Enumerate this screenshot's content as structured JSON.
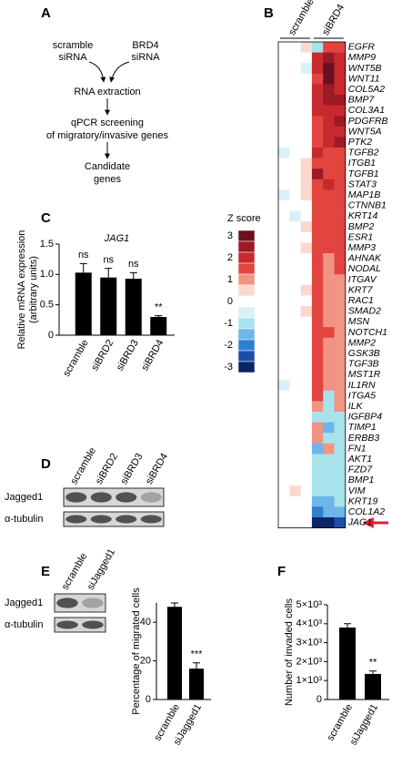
{
  "flowchart": {
    "label": "A",
    "inputs": [
      [
        "scramble",
        "siRNA"
      ],
      [
        "BRD4",
        "siRNA"
      ]
    ],
    "steps": [
      [
        "RNA extraction"
      ],
      [
        "qPCR screening",
        "of migratory/invasive genes"
      ],
      [
        "Candidate",
        "genes"
      ]
    ]
  },
  "heatmap": {
    "label": "B",
    "column_groups": [
      "scramble",
      "siBRD4"
    ],
    "legend_title": "Z score",
    "legend_ticks": [
      3,
      2,
      1,
      0,
      -1,
      -2,
      -3
    ],
    "colorscale": [
      {
        "value": 3,
        "color": "#6d0f1e"
      },
      {
        "value": 2.5,
        "color": "#9c1a26"
      },
      {
        "value": 2,
        "color": "#c62a2f"
      },
      {
        "value": 1.5,
        "color": "#e2453f"
      },
      {
        "value": 1,
        "color": "#f29483"
      },
      {
        "value": 0.5,
        "color": "#fbd8cf"
      },
      {
        "value": 0,
        "color": "#ffffff"
      },
      {
        "value": -0.5,
        "color": "#d9f1f6"
      },
      {
        "value": -1,
        "color": "#a8e2eb"
      },
      {
        "value": -1.5,
        "color": "#6cb6e8"
      },
      {
        "value": -2,
        "color": "#2f7fd0"
      },
      {
        "value": -2.5,
        "color": "#1a4fa8"
      },
      {
        "value": -3,
        "color": "#0b2468"
      }
    ],
    "genes": [
      "EGFR",
      "MMP9",
      "WNT5B",
      "WNT11",
      "COL5A2",
      "BMP7",
      "COL3A1",
      "PDGFRB",
      "WNT5A",
      "PTK2",
      "TGFB2",
      "ITGB1",
      "TGFB1",
      "STAT3",
      "MAP1B",
      "CTNNB1",
      "KRT14",
      "BMP2",
      "ESR1",
      "MMP3",
      "AHNAK",
      "NODAL",
      "ITGAV",
      "KRT7",
      "RAC1",
      "SMAD2",
      "MSN",
      "NOTCH1",
      "MMP2",
      "GSK3B",
      "TGF3B",
      "MST1R",
      "IL1RN",
      "ITGA5",
      "ILK",
      "IGFBP4",
      "TIMP1",
      "ERBB3",
      "FN1",
      "AKT1",
      "FZD7",
      "BMP1",
      "VIM",
      "KRT19",
      "COL1A2",
      "JAG1"
    ],
    "values": [
      [
        0,
        0,
        0.5,
        -1,
        1.5,
        1.5
      ],
      [
        0,
        0,
        0,
        2,
        2.5,
        2
      ],
      [
        0,
        0,
        -0.5,
        2,
        3,
        2
      ],
      [
        0,
        0,
        0,
        1.5,
        3,
        2
      ],
      [
        0,
        0,
        0,
        2,
        2.5,
        2
      ],
      [
        0,
        0,
        0,
        2,
        2.5,
        2.5
      ],
      [
        0,
        0,
        0,
        2,
        2,
        2
      ],
      [
        0,
        0,
        0,
        1.5,
        2,
        2.5
      ],
      [
        0,
        0,
        0,
        1.5,
        2,
        2
      ],
      [
        0,
        0,
        0,
        1.5,
        2,
        2.5
      ],
      [
        -0.5,
        0,
        0,
        2,
        1.5,
        1.5
      ],
      [
        0,
        0,
        0.5,
        1.5,
        1.5,
        1.5
      ],
      [
        0,
        0,
        0.5,
        2.5,
        1.5,
        1.5
      ],
      [
        0,
        0,
        0.5,
        1.5,
        2,
        1.5
      ],
      [
        -0.5,
        0,
        0.5,
        1.5,
        1.5,
        1.5
      ],
      [
        0,
        0,
        0,
        1.5,
        1.5,
        1.5
      ],
      [
        0,
        -0.5,
        0,
        1.5,
        1.5,
        1.5
      ],
      [
        0,
        0,
        0.5,
        1.5,
        1.5,
        1.5
      ],
      [
        0,
        0,
        0,
        1.5,
        1.5,
        1.5
      ],
      [
        0,
        0,
        0.5,
        1.5,
        1.5,
        1.5
      ],
      [
        0,
        0,
        0,
        1.5,
        1,
        1.5
      ],
      [
        0,
        0,
        0,
        1.5,
        1,
        1.5
      ],
      [
        0,
        0,
        0,
        1.5,
        1,
        1
      ],
      [
        0,
        0,
        0.5,
        1.5,
        1,
        1
      ],
      [
        0,
        0,
        0,
        1.5,
        1,
        1
      ],
      [
        0,
        0,
        0.5,
        1.5,
        1,
        1
      ],
      [
        0,
        0,
        0,
        1.5,
        1,
        1
      ],
      [
        0,
        0,
        0,
        1.5,
        1.5,
        1
      ],
      [
        0,
        0,
        0,
        1.5,
        1,
        1
      ],
      [
        0,
        0,
        0,
        1.5,
        1,
        1
      ],
      [
        0,
        0,
        0,
        1.5,
        1,
        1
      ],
      [
        0,
        0,
        0,
        1.5,
        1,
        1
      ],
      [
        -0.5,
        0,
        0,
        1.5,
        1,
        1
      ],
      [
        0,
        0,
        0,
        1.5,
        -1,
        1
      ],
      [
        0,
        0,
        0,
        1,
        -1,
        1
      ],
      [
        0,
        0,
        0,
        -1,
        -1,
        -1
      ],
      [
        0,
        0,
        0,
        1,
        -1.5,
        -1
      ],
      [
        0,
        0,
        0,
        1,
        -1,
        -1
      ],
      [
        0,
        0,
        0,
        -1.5,
        1,
        -1
      ],
      [
        0,
        0,
        0,
        -1,
        -1,
        -1
      ],
      [
        0,
        0,
        0,
        -1,
        -1,
        -1
      ],
      [
        0,
        0,
        0,
        -1,
        -1,
        -1
      ],
      [
        0,
        0.5,
        0,
        -1,
        -1,
        -1
      ],
      [
        0,
        0,
        0,
        -1.5,
        -1.5,
        -1
      ],
      [
        0,
        0,
        0,
        -2,
        -1.5,
        -1.5
      ],
      [
        0,
        0,
        0,
        -3,
        -3,
        -2.5
      ]
    ]
  },
  "blots": [
    {
      "label": "D",
      "lanes": [
        "scramble",
        "siBRD2",
        "siBRD3",
        "siBRD4"
      ],
      "rows": [
        "Jagged1",
        "α-tubulin"
      ]
    },
    {
      "label": "E",
      "lanes": [
        "scramble",
        "siJagged1"
      ],
      "rows": [
        "Jagged1",
        "α-tubulin"
      ]
    }
  ],
  "chart_data": [
    {
      "type": "bar",
      "panel": "C",
      "title": "JAG1",
      "ylabel": [
        "Relative mRNA expression",
        "(arbitrary units)"
      ],
      "categories": [
        "scramble",
        "siBRD2",
        "siBRD3",
        "siBRD4"
      ],
      "values": [
        1.03,
        0.95,
        0.93,
        0.3
      ],
      "errors": [
        0.15,
        0.15,
        0.1,
        0.02
      ],
      "annotations": [
        "ns",
        "ns",
        "ns",
        "**"
      ],
      "color": "#000000",
      "ylim": [
        0,
        1.5
      ],
      "yticks": [
        0,
        0.5,
        {
          "value": 1,
          "label": "1.0"
        },
        1.5
      ]
    },
    {
      "type": "bar",
      "ylabel": [
        "Percentage of migrated cells"
      ],
      "categories": [
        "scramble",
        "siJagged1"
      ],
      "values": [
        48,
        16
      ],
      "errors": [
        2,
        3
      ],
      "annotations": [
        null,
        "***"
      ],
      "color": "#000000",
      "ylim": [
        0,
        50
      ],
      "yticks": [
        0,
        20,
        40
      ]
    },
    {
      "type": "bar",
      "panel": "F",
      "ylabel": [
        "Number of invaded cells"
      ],
      "categories": [
        "scramble",
        "siJagged1"
      ],
      "values": [
        3800,
        1350
      ],
      "errors": [
        200,
        150
      ],
      "annotations": [
        null,
        "**"
      ],
      "color": "#000000",
      "ylim": [
        0,
        5000
      ],
      "yticks": [
        0,
        {
          "value": 1000,
          "label": "1×10³"
        },
        {
          "value": 2000,
          "label": "2×10³"
        },
        {
          "value": 3000,
          "label": "3×10³"
        },
        {
          "value": 4000,
          "label": "4×10³"
        },
        {
          "value": 5000,
          "label": "5×10³"
        }
      ]
    }
  ]
}
